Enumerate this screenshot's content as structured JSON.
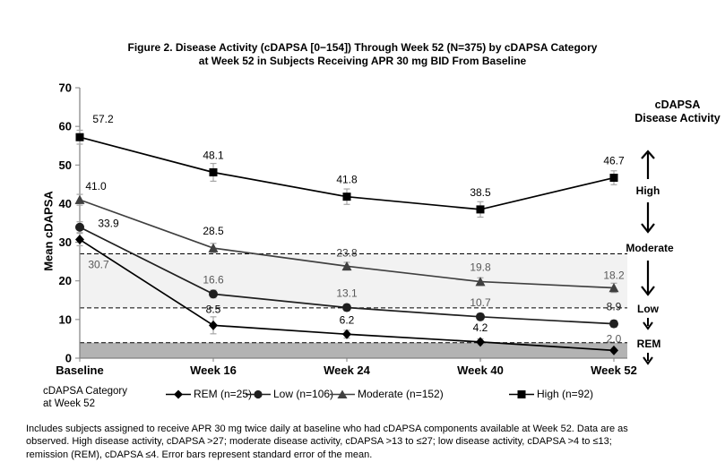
{
  "chart_data": {
    "type": "line",
    "title_lines": [
      "Figure 2. Disease Activity (cDAPSA [0−154]) Through Week 52 (N=375) by cDAPSA Category",
      "at Week 52 in Subjects Receiving APR 30 mg BID From Baseline"
    ],
    "x_categories": [
      "Baseline",
      "Week 16",
      "Week 24",
      "Week 40",
      "Week 52"
    ],
    "xlabel": "",
    "ylabel": "Mean cDAPSA",
    "ylim": [
      0,
      70
    ],
    "ytick_step": 10,
    "grid": false,
    "legend_position": "bottom",
    "series": [
      {
        "name": "REM (n=25)",
        "marker": "diamond",
        "color": "#000000",
        "values": [
          30.7,
          8.5,
          6.2,
          4.2,
          2.0
        ],
        "se": [
          1.6,
          2.2,
          1.0,
          0.8,
          0.6
        ],
        "label_colors": [
          "#595959",
          "#000000",
          "#000000",
          "#000000",
          "#595959"
        ],
        "label_offsets": [
          [
            21,
            32
          ],
          [
            0,
            -14
          ],
          [
            0,
            -12
          ],
          [
            0,
            -12
          ],
          [
            0,
            -9
          ]
        ]
      },
      {
        "name": "Low (n=106)",
        "marker": "circle",
        "color": "#1f1f1f",
        "values": [
          33.9,
          16.6,
          13.1,
          10.7,
          8.9
        ],
        "se": [
          1.4,
          1.0,
          0.9,
          0.9,
          0.9
        ],
        "label_colors": [
          "#000000",
          "#595959",
          "#595959",
          "#595959",
          "#1a1a1a"
        ],
        "label_offsets": [
          [
            32,
            0
          ],
          [
            0,
            -12
          ],
          [
            0,
            -12
          ],
          [
            0,
            -12
          ],
          [
            0,
            -15
          ]
        ]
      },
      {
        "name": "Moderate (n=152)",
        "marker": "triangle",
        "color": "#404040",
        "values": [
          41.0,
          28.5,
          23.8,
          19.8,
          18.2
        ],
        "se": [
          1.4,
          1.2,
          1.0,
          1.0,
          1.2
        ],
        "label_colors": [
          "#000000",
          "#000000",
          "#404040",
          "#595959",
          "#595959"
        ],
        "label_offsets": [
          [
            18,
            -11
          ],
          [
            0,
            -15
          ],
          [
            0,
            -11
          ],
          [
            0,
            -12
          ],
          [
            0,
            -10
          ]
        ]
      },
      {
        "name": "High (n=92)",
        "marker": "square",
        "color": "#000000",
        "values": [
          57.2,
          48.1,
          41.8,
          38.5,
          46.7
        ],
        "se": [
          1.8,
          2.3,
          2.0,
          2.0,
          1.8
        ],
        "label_colors": [
          "#000000",
          "#000000",
          "#000000",
          "#000000",
          "#000000"
        ],
        "label_offsets": [
          [
            26,
            -16
          ],
          [
            0,
            -15
          ],
          [
            0,
            -15
          ],
          [
            0,
            -15
          ],
          [
            0,
            -15
          ]
        ]
      }
    ],
    "thresholds": [
      {
        "value": 27,
        "style": "dashed"
      },
      {
        "value": 13,
        "style": "dashed"
      },
      {
        "value": 4,
        "style": "dashed"
      }
    ],
    "bands": [
      {
        "from": 13,
        "to": 27,
        "color": "#f2f2f2"
      },
      {
        "from": 0,
        "to": 4,
        "color": "#b3b3b3"
      }
    ]
  },
  "right_axis": {
    "header_lines": [
      "cDAPSA",
      "Disease Activity"
    ],
    "zones": [
      {
        "label": "High"
      },
      {
        "label": "Moderate"
      },
      {
        "label": "Low"
      },
      {
        "label": "REM"
      }
    ]
  },
  "legend": {
    "header_lines": [
      "cDAPSA Category",
      "at Week 52"
    ],
    "items": [
      {
        "label": "REM (n=25)",
        "marker": "diamond"
      },
      {
        "label": "Low (n=106)",
        "marker": "circle"
      },
      {
        "label": "Moderate (n=152)",
        "marker": "triangle"
      },
      {
        "label": "High (n=92)",
        "marker": "square"
      }
    ]
  },
  "footnote": {
    "lines": [
      "Includes subjects assigned to receive APR 30 mg twice daily at baseline who had cDAPSA components available at Week 52. Data are as",
      "observed. High disease activity, cDAPSA >27; moderate disease activity, cDAPSA >13 to ≤27; low disease activity, cDAPSA >4 to ≤13;",
      "remission (REM), cDAPSA ≤4. Error bars represent standard error of the mean."
    ]
  }
}
